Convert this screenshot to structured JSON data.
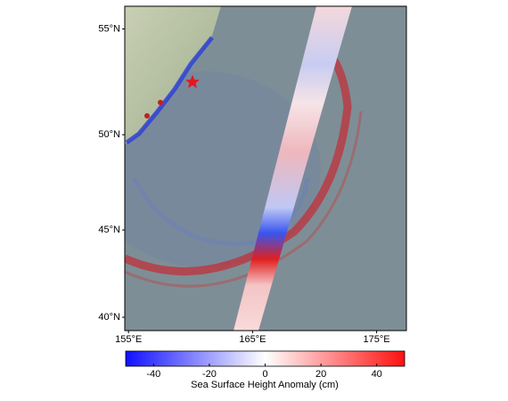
{
  "map": {
    "lon_lim": [
      154.7,
      177.4
    ],
    "lat_lim": [
      39.2,
      56.0
    ],
    "lon_ticks": [
      {
        "value": 155,
        "label": "155°E"
      },
      {
        "value": 165,
        "label": "165°E"
      },
      {
        "value": 175,
        "label": "175°E"
      }
    ],
    "lat_ticks": [
      {
        "value": 40,
        "label": "40°N"
      },
      {
        "value": 45,
        "label": "45°N"
      },
      {
        "value": 50,
        "label": "50°N"
      },
      {
        "value": 55,
        "label": "55°N"
      }
    ]
  },
  "colorbar": {
    "label": "Sea Surface Height Anomaly (cm)",
    "lim": [
      -50,
      50
    ],
    "ticks": [
      -40,
      -20,
      0,
      20,
      40
    ],
    "colors": [
      "#1010ff",
      "#ffffff",
      "#ff1010"
    ]
  }
}
